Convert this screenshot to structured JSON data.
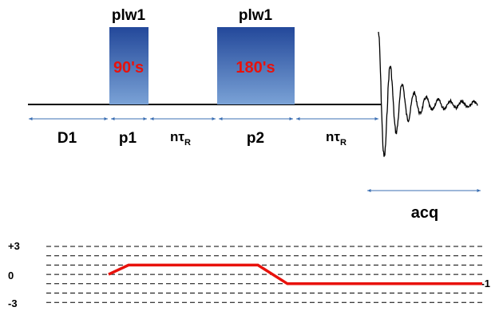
{
  "diagram": {
    "pulses": [
      {
        "power_label": "plw1",
        "angle_label": "90's"
      },
      {
        "power_label": "plw1",
        "angle_label": "180's"
      }
    ],
    "delays": {
      "d1": "D1",
      "p1": "p1",
      "n1_main": "nτ",
      "n1_sub": "R",
      "p2": "p2",
      "n2_main": "nτ",
      "n2_sub": "R",
      "acq": "acq"
    },
    "coherence": {
      "levels": [
        "+3",
        "0",
        "-3"
      ],
      "end_label": "-1",
      "path_values": [
        0,
        1,
        1,
        -1,
        -1
      ]
    },
    "colors": {
      "pulse_fill_top": "#23489a",
      "pulse_fill_bottom": "#7aa2d6",
      "pulse_text": "#e8120c",
      "arrow": "#3b6fb3",
      "path": "#e8120c"
    }
  }
}
